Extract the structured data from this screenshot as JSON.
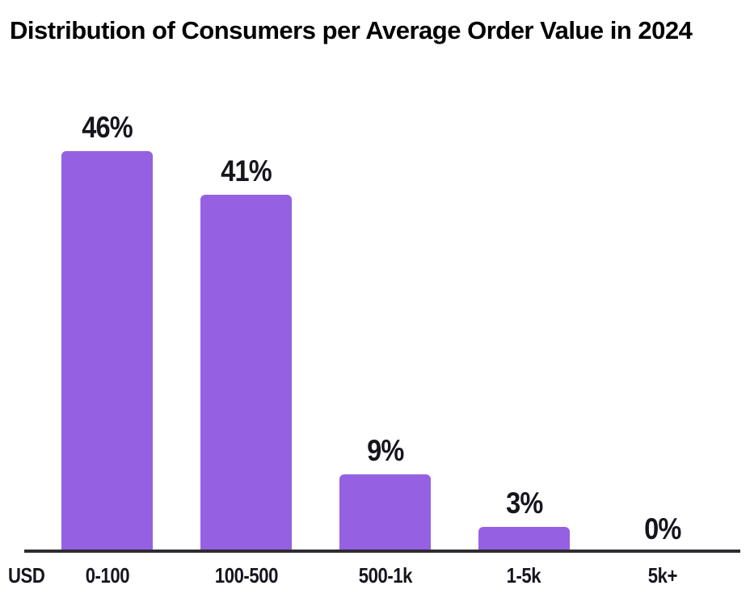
{
  "page": {
    "title": "Distribution of Consumers per Average Order Value in 2024"
  },
  "chart_data": {
    "type": "bar",
    "title": "Distribution of Consumers per Average Order Value in 2024",
    "xlabel": "USD",
    "ylabel": "",
    "x_axis_unit_label": "USD",
    "categories": [
      "0-100",
      "100-500",
      "500-1k",
      "1-5k",
      "5k+"
    ],
    "values": [
      46,
      41,
      9,
      3,
      0
    ],
    "value_labels": [
      "46%",
      "41%",
      "9%",
      "3%",
      "0%"
    ],
    "ylim": [
      0,
      50
    ],
    "grid": false,
    "legend": false,
    "colors": {
      "bar": "#9561e2",
      "text": "#17141d",
      "axis": "#2e2c33",
      "background": "#ffffff"
    }
  }
}
